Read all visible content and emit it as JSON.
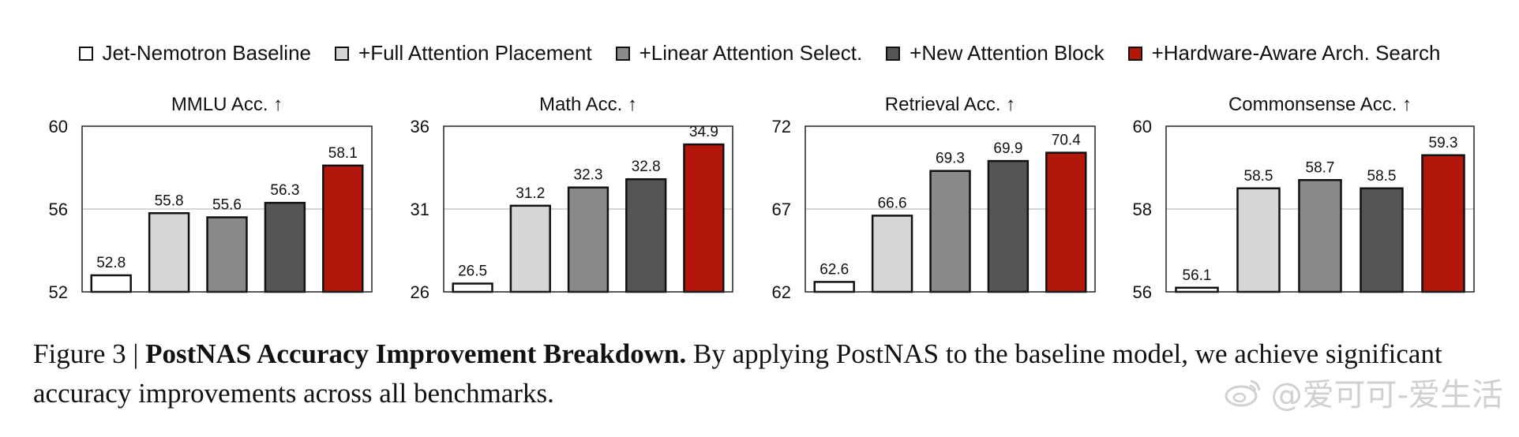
{
  "legend": [
    {
      "label": "Jet-Nemotron Baseline",
      "color": "#ffffff"
    },
    {
      "label": "+Full Attention Placement",
      "color": "#d6d6d6"
    },
    {
      "label": "+Linear Attention Select.",
      "color": "#8a8a8a"
    },
    {
      "label": "+New Attention Block",
      "color": "#555555"
    },
    {
      "label": "+Hardware-Aware Arch. Search",
      "color": "#b3170b"
    }
  ],
  "chart_data": [
    {
      "type": "bar",
      "title": "MMLU Acc. ↑",
      "categories": [
        "Jet-Nemotron Baseline",
        "+Full Attention Placement",
        "+Linear Attention Select.",
        "+New Attention Block",
        "+Hardware-Aware Arch. Search"
      ],
      "values": [
        52.8,
        55.8,
        55.6,
        56.3,
        58.1
      ],
      "labels": [
        "52.8",
        "55.8",
        "55.6",
        "56.3",
        "58.1"
      ],
      "ylim": [
        52,
        60
      ],
      "yticks": [
        "52",
        "56",
        "60"
      ],
      "ytick_values": [
        52,
        56,
        60
      ],
      "grid": "horizontal at middle tick"
    },
    {
      "type": "bar",
      "title": "Math Acc. ↑",
      "categories": [
        "Jet-Nemotron Baseline",
        "+Full Attention Placement",
        "+Linear Attention Select.",
        "+New Attention Block",
        "+Hardware-Aware Arch. Search"
      ],
      "values": [
        26.5,
        31.2,
        32.3,
        32.8,
        34.9
      ],
      "labels": [
        "26.5",
        "31.2",
        "32.3",
        "32.8",
        "34.9"
      ],
      "ylim": [
        26,
        36
      ],
      "yticks": [
        "26",
        "31",
        "36"
      ],
      "ytick_values": [
        26,
        31,
        36
      ],
      "grid": "horizontal at middle tick"
    },
    {
      "type": "bar",
      "title": "Retrieval Acc. ↑",
      "categories": [
        "Jet-Nemotron Baseline",
        "+Full Attention Placement",
        "+Linear Attention Select.",
        "+New Attention Block",
        "+Hardware-Aware Arch. Search"
      ],
      "values": [
        62.6,
        66.6,
        69.3,
        69.9,
        70.4
      ],
      "labels": [
        "62.6",
        "66.6",
        "69.3",
        "69.9",
        "70.4"
      ],
      "ylim": [
        62,
        72
      ],
      "yticks": [
        "62",
        "67",
        "72"
      ],
      "ytick_values": [
        62,
        67,
        72
      ],
      "grid": "horizontal at middle tick"
    },
    {
      "type": "bar",
      "title": "Commonsense Acc. ↑",
      "categories": [
        "Jet-Nemotron Baseline",
        "+Full Attention Placement",
        "+Linear Attention Select.",
        "+New Attention Block",
        "+Hardware-Aware Arch. Search"
      ],
      "values": [
        56.1,
        58.5,
        58.7,
        58.5,
        59.3
      ],
      "labels": [
        "56.1",
        "58.5",
        "58.7",
        "58.5",
        "59.3"
      ],
      "ylim": [
        56,
        60
      ],
      "yticks": [
        "56",
        "58",
        "60"
      ],
      "ytick_values": [
        56,
        58,
        60
      ],
      "grid": "horizontal at middle tick"
    }
  ],
  "caption": {
    "prefix": "Figure 3 | ",
    "bold": "PostNAS Accuracy Improvement Breakdown.",
    "rest": " By applying PostNAS to the baseline model, we achieve significant accuracy improvements across all benchmarks."
  },
  "watermark": {
    "text": "@爱可可-爱生活",
    "icon": "weibo-logo-icon"
  }
}
